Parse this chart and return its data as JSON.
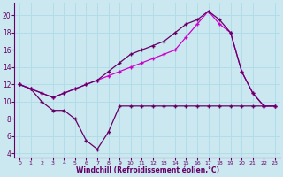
{
  "bg_color": "#cbe8f0",
  "grid_color": "#b0dde8",
  "line_color_upper": "#cc00cc",
  "line_color_lower": "#660066",
  "xlabel": "Windchill (Refroidissement éolien,°C)",
  "xlabel_color": "#660066",
  "tick_color": "#660066",
  "xlim": [
    -0.5,
    23.5
  ],
  "ylim": [
    3.5,
    21.5
  ],
  "yticks": [
    4,
    6,
    8,
    10,
    12,
    14,
    16,
    18,
    20
  ],
  "xticks": [
    0,
    1,
    2,
    3,
    4,
    5,
    6,
    7,
    8,
    9,
    10,
    11,
    12,
    13,
    14,
    15,
    16,
    17,
    18,
    19,
    20,
    21,
    22,
    23
  ],
  "series1_x": [
    0,
    1,
    2,
    3,
    4,
    5,
    6,
    7,
    8,
    9,
    10,
    11,
    12,
    13,
    14,
    15,
    16,
    17,
    18,
    19,
    20,
    21,
    22,
    23
  ],
  "series1_y": [
    12.0,
    11.5,
    10.0,
    9.0,
    9.0,
    8.0,
    5.5,
    4.5,
    6.5,
    9.5,
    9.5,
    9.5,
    9.5,
    9.5,
    9.5,
    9.5,
    9.5,
    9.5,
    9.5,
    9.5,
    9.5,
    9.5,
    9.5,
    9.5
  ],
  "series2_x": [
    0,
    1,
    2,
    3,
    4,
    5,
    6,
    7,
    8,
    9,
    10,
    11,
    12,
    13,
    14,
    15,
    16,
    17,
    18,
    19,
    20,
    21,
    22,
    23
  ],
  "series2_y": [
    12.0,
    11.5,
    11.0,
    10.5,
    11.0,
    11.5,
    12.0,
    12.5,
    13.0,
    13.5,
    14.0,
    14.5,
    15.0,
    15.5,
    16.0,
    17.5,
    19.0,
    20.5,
    19.0,
    18.0,
    13.5,
    11.0,
    9.5,
    9.5
  ],
  "series3_x": [
    0,
    1,
    2,
    3,
    4,
    5,
    6,
    7,
    8,
    9,
    10,
    11,
    12,
    13,
    14,
    15,
    16,
    17,
    18,
    19,
    20,
    21,
    22,
    23
  ],
  "series3_y": [
    12.0,
    11.5,
    11.0,
    10.5,
    11.0,
    11.5,
    12.0,
    12.5,
    13.5,
    14.5,
    15.5,
    16.0,
    16.5,
    17.0,
    18.0,
    19.0,
    19.5,
    20.5,
    19.5,
    18.0,
    13.5,
    11.0,
    9.5,
    9.5
  ]
}
